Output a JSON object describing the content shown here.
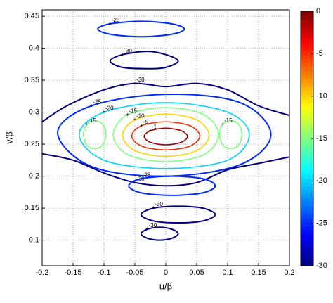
{
  "chart_data": {
    "type": "contour",
    "xlabel": "u/β",
    "ylabel": "v/β",
    "xlim": [
      -0.2,
      0.2
    ],
    "ylim": [
      0.06,
      0.46
    ],
    "xticks": [
      -0.2,
      -0.15,
      -0.1,
      -0.05,
      0,
      0.05,
      0.1,
      0.15,
      0.2
    ],
    "yticks": [
      0.1,
      0.15,
      0.2,
      0.25,
      0.3,
      0.35,
      0.4,
      0.45
    ],
    "grid": true,
    "colormap": "jet",
    "clim": [
      -30,
      0
    ],
    "cticks": [
      0,
      -5,
      -10,
      -15,
      -20,
      -25,
      -30
    ],
    "contours": [
      {
        "level": -1,
        "closed": true,
        "x": [
          0.035,
          0.025,
          0,
          -0.025,
          -0.035,
          -0.025,
          0,
          0.025
        ],
        "y": [
          0.262,
          0.271,
          0.275,
          0.271,
          0.262,
          0.253,
          0.249,
          0.253
        ]
      },
      {
        "level": -5,
        "closed": true,
        "x": [
          0.055,
          0.039,
          0,
          -0.039,
          -0.055,
          -0.039,
          0,
          0.039
        ],
        "y": [
          0.263,
          0.279,
          0.285,
          0.279,
          0.263,
          0.247,
          0.241,
          0.247
        ]
      },
      {
        "level": -10,
        "closed": true,
        "x": [
          0.07,
          0.05,
          0,
          -0.05,
          -0.07,
          -0.05,
          0,
          0.05
        ],
        "y": [
          0.264,
          0.288,
          0.297,
          0.288,
          0.264,
          0.24,
          0.231,
          0.24
        ]
      },
      {
        "level": -15,
        "closed": true,
        "x": [
          0.085,
          0.062,
          0,
          -0.062,
          -0.085,
          -0.062,
          0,
          0.062
        ],
        "y": [
          0.265,
          0.296,
          0.307,
          0.296,
          0.265,
          0.234,
          0.223,
          0.234
        ]
      },
      {
        "level": -15,
        "closed": true,
        "x": [
          0.123,
          0.118,
          0.105,
          0.092,
          0.087,
          0.092,
          0.105,
          0.118
        ],
        "y": [
          0.265,
          0.281,
          0.287,
          0.281,
          0.265,
          0.249,
          0.243,
          0.249
        ]
      },
      {
        "level": -15,
        "closed": true,
        "x": [
          -0.097,
          -0.102,
          -0.115,
          -0.128,
          -0.133,
          -0.128,
          -0.115,
          -0.102
        ],
        "y": [
          0.265,
          0.281,
          0.287,
          0.281,
          0.265,
          0.249,
          0.243,
          0.249
        ]
      },
      {
        "level": -20,
        "closed": true,
        "x": [
          0.135,
          0.1,
          0,
          -0.1,
          -0.14,
          -0.1,
          0,
          0.1
        ],
        "y": [
          0.265,
          0.3,
          0.315,
          0.3,
          0.265,
          0.225,
          0.212,
          0.225
        ]
      },
      {
        "level": -25,
        "closed": true,
        "x": [
          0.17,
          0.12,
          0,
          -0.12,
          -0.175,
          -0.12,
          0,
          0.12
        ],
        "y": [
          0.265,
          0.315,
          0.328,
          0.31,
          0.268,
          0.215,
          0.2,
          0.218
        ]
      },
      {
        "level": -30,
        "closed": false,
        "x": [
          -0.2,
          -0.16,
          -0.1,
          -0.05,
          0,
          0.05,
          0.1,
          0.15,
          0.2
        ],
        "y": [
          0.285,
          0.31,
          0.335,
          0.345,
          0.34,
          0.345,
          0.335,
          0.31,
          0.295
        ]
      },
      {
        "level": -30,
        "closed": false,
        "x": [
          -0.2,
          -0.15,
          -0.1,
          -0.05,
          0,
          0.05,
          0.1,
          0.15,
          0.2
        ],
        "y": [
          0.235,
          0.225,
          0.205,
          0.19,
          0.185,
          0.19,
          0.21,
          0.22,
          0.23
        ]
      },
      {
        "level": -30,
        "closed": true,
        "x": [
          0.02,
          0,
          -0.03,
          -0.07,
          -0.09,
          -0.07,
          -0.03,
          0
        ],
        "y": [
          0.38,
          0.39,
          0.395,
          0.39,
          0.38,
          0.37,
          0.368,
          0.37
        ]
      },
      {
        "level": -25,
        "closed": true,
        "x": [
          0.03,
          0.01,
          -0.04,
          -0.09,
          -0.11,
          -0.09,
          -0.04,
          0.01
        ],
        "y": [
          0.43,
          0.438,
          0.442,
          0.438,
          0.43,
          0.422,
          0.418,
          0.422
        ]
      },
      {
        "level": -25,
        "closed": true,
        "x": [
          0.08,
          0.06,
          0.01,
          -0.04,
          -0.06,
          -0.04,
          0.01,
          0.06
        ],
        "y": [
          0.185,
          0.196,
          0.2,
          0.196,
          0.185,
          0.174,
          0.17,
          0.174
        ]
      },
      {
        "level": -30,
        "closed": true,
        "x": [
          0.08,
          0.06,
          0.02,
          -0.02,
          -0.04,
          -0.02,
          0.02,
          0.06
        ],
        "y": [
          0.14,
          0.15,
          0.153,
          0.15,
          0.14,
          0.13,
          0.127,
          0.13
        ]
      },
      {
        "level": -30,
        "closed": true,
        "x": [
          0.02,
          0.01,
          -0.01,
          -0.03,
          -0.04,
          -0.03,
          -0.01,
          0.01
        ],
        "y": [
          0.11,
          0.117,
          0.12,
          0.117,
          0.11,
          0.103,
          0.1,
          0.103
        ]
      }
    ]
  }
}
